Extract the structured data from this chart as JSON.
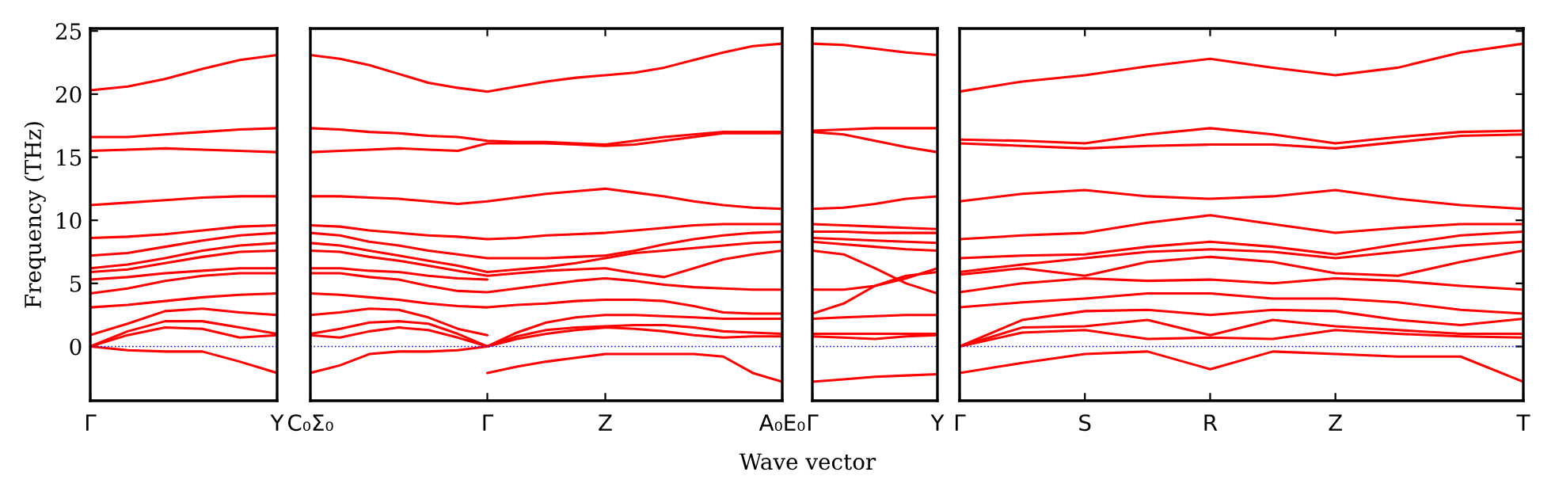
{
  "chart_data": [
    {
      "type": "line",
      "ylabel": "Frequency (THz)",
      "color": "#ff0000",
      "ylim": [
        -4.3,
        25.2
      ],
      "yticks": [
        0,
        5,
        10,
        15,
        20,
        25
      ],
      "grid": false,
      "ref_lines": [
        {
          "axis": "y",
          "value": 0,
          "color": "#0000ff",
          "line_style": "dotted"
        }
      ],
      "categories": [
        "Γ",
        null,
        null,
        null,
        null,
        "Y"
      ],
      "series": [
        {
          "values": [
            20.3,
            20.6,
            21.2,
            22.0,
            22.7,
            23.1
          ]
        },
        {
          "values": [
            16.6,
            16.6,
            16.8,
            17.0,
            17.2,
            17.3
          ]
        },
        {
          "values": [
            15.5,
            15.6,
            15.7,
            15.6,
            15.5,
            15.4
          ]
        },
        {
          "values": [
            11.2,
            11.4,
            11.6,
            11.8,
            11.9,
            11.9
          ]
        },
        {
          "values": [
            8.6,
            8.7,
            8.9,
            9.2,
            9.5,
            9.6
          ]
        },
        {
          "values": [
            7.2,
            7.4,
            7.9,
            8.4,
            8.8,
            9.0
          ]
        },
        {
          "values": [
            6.2,
            6.5,
            7.0,
            7.6,
            8.0,
            8.2
          ]
        },
        {
          "values": [
            5.9,
            6.1,
            6.6,
            7.1,
            7.5,
            7.6
          ]
        },
        {
          "values": [
            5.3,
            5.5,
            5.8,
            6.0,
            6.2,
            6.2
          ]
        },
        {
          "values": [
            4.2,
            4.6,
            5.2,
            5.6,
            5.8,
            5.8
          ]
        },
        {
          "values": [
            3.1,
            3.3,
            3.6,
            3.9,
            4.1,
            4.2
          ]
        },
        {
          "values": [
            0.9,
            1.8,
            2.8,
            3.0,
            2.7,
            2.5
          ]
        },
        {
          "values": [
            0,
            1.2,
            2.0,
            2.0,
            1.5,
            1.0
          ]
        },
        {
          "values": [
            0,
            0.9,
            1.5,
            1.4,
            0.7,
            0.9
          ]
        },
        {
          "values": [
            0,
            -0.3,
            -0.4,
            -0.4,
            -1.2,
            -2.1
          ]
        }
      ]
    },
    {
      "type": "line",
      "color": "#ff0000",
      "ylim": [
        -4.3,
        25.2
      ],
      "yticks": [
        0,
        5,
        10,
        15,
        20,
        25
      ],
      "tick_labels": "x",
      "grid": false,
      "ref_lines": [
        {
          "axis": "y",
          "value": 0,
          "color": "#0000ff",
          "line_style": "dotted"
        }
      ],
      "categories": [
        "C₀Σ₀",
        null,
        null,
        null,
        null,
        null,
        "Γ",
        null,
        null,
        null,
        "Z",
        null,
        null,
        null,
        null,
        null,
        "A₀E₀"
      ],
      "series": [
        {
          "values": [
            23.1,
            22.8,
            22.3,
            21.6,
            20.9,
            20.5,
            20.2,
            20.6,
            21.0,
            21.3,
            21.5,
            21.7,
            22.1,
            22.7,
            23.3,
            23.8,
            24.0
          ]
        },
        {
          "values": [
            17.3,
            17.2,
            17.0,
            16.9,
            16.7,
            16.6,
            16.3,
            16.2,
            16.2,
            16.1,
            16.0,
            16.3,
            16.6,
            16.8,
            17.0,
            17.0,
            17.0
          ]
        },
        {
          "values": [
            15.4,
            15.5,
            15.6,
            15.7,
            15.6,
            15.5,
            16.1,
            16.1,
            16.1,
            16.0,
            15.9,
            16.0,
            16.3,
            16.6,
            16.9,
            16.9,
            16.9
          ]
        },
        {
          "values": [
            11.9,
            11.9,
            11.8,
            11.7,
            11.5,
            11.3,
            11.5,
            11.8,
            12.1,
            12.3,
            12.5,
            12.2,
            11.9,
            11.5,
            11.2,
            11.0,
            10.9
          ]
        },
        {
          "values": [
            9.6,
            9.5,
            9.2,
            9.0,
            8.8,
            8.7,
            8.5,
            8.6,
            8.8,
            8.9,
            9.0,
            9.2,
            9.4,
            9.6,
            9.7,
            9.7,
            9.7
          ]
        },
        {
          "values": [
            9.0,
            8.8,
            8.3,
            8.0,
            7.6,
            7.3,
            7.0,
            7.0,
            7.0,
            7.1,
            7.2,
            7.6,
            8.1,
            8.5,
            8.8,
            9.0,
            9.1
          ]
        },
        {
          "values": [
            8.2,
            8.0,
            7.6,
            7.2,
            6.8,
            6.4,
            5.9,
            6.1,
            6.3,
            6.6,
            7.0,
            7.4,
            7.6,
            7.8,
            8.0,
            8.2,
            8.3
          ]
        },
        {
          "values": [
            7.6,
            7.5,
            7.1,
            6.8,
            6.4,
            6.0,
            5.6,
            5.8,
            6.0,
            6.1,
            6.2,
            5.8,
            5.5,
            6.2,
            6.9,
            7.3,
            7.6
          ]
        },
        {
          "values": [
            6.2,
            6.2,
            6.0,
            5.9,
            5.6,
            5.4,
            5.3,
            null,
            null,
            null,
            null,
            null,
            null,
            null,
            null,
            null,
            null
          ]
        },
        {
          "values": [
            5.8,
            5.8,
            5.5,
            5.3,
            4.8,
            4.4,
            4.3,
            4.6,
            4.9,
            5.2,
            5.4,
            5.2,
            4.9,
            4.7,
            4.6,
            4.5,
            4.5
          ]
        },
        {
          "values": [
            4.2,
            4.1,
            3.9,
            3.7,
            3.4,
            3.2,
            3.1,
            3.3,
            3.4,
            3.6,
            3.7,
            3.7,
            3.6,
            3.2,
            2.7,
            2.6,
            2.6
          ]
        },
        {
          "values": [
            2.5,
            2.7,
            3.0,
            2.9,
            2.3,
            1.4,
            0.9,
            null,
            null,
            null,
            null,
            null,
            null,
            null,
            null,
            null,
            null
          ]
        },
        {
          "values": [
            1.0,
            1.4,
            1.9,
            2.0,
            1.8,
            1.0,
            0,
            1.1,
            1.9,
            2.3,
            2.5,
            2.5,
            2.4,
            2.3,
            2.2,
            2.2,
            2.2
          ]
        },
        {
          "values": [
            0.9,
            0.7,
            1.2,
            1.5,
            1.3,
            0.7,
            0,
            0.8,
            1.3,
            1.5,
            1.6,
            1.7,
            1.7,
            1.5,
            1.2,
            1.1,
            1.0
          ]
        },
        {
          "values": [
            -2.1,
            -1.5,
            -0.6,
            -0.4,
            -0.4,
            -0.3,
            0,
            0.6,
            1.0,
            1.3,
            1.5,
            1.4,
            1.2,
            0.9,
            0.7,
            0.8,
            0.8
          ]
        },
        {
          "values": [
            null,
            null,
            null,
            null,
            null,
            null,
            -2.1,
            -1.6,
            -1.2,
            -0.9,
            -0.6,
            -0.6,
            -0.6,
            -0.6,
            -0.8,
            -2.1,
            -2.8
          ]
        }
      ]
    },
    {
      "type": "line",
      "xlabel": "Wave vector",
      "color": "#ff0000",
      "ylim": [
        -4.3,
        25.2
      ],
      "yticks": [
        0,
        5,
        10,
        15,
        20,
        25
      ],
      "tick_labels": "x",
      "grid": false,
      "ref_lines": [
        {
          "axis": "y",
          "value": 0,
          "color": "#0000ff",
          "line_style": "dotted"
        }
      ],
      "categories": [
        "Γ",
        null,
        null,
        null,
        "Y"
      ],
      "series": [
        {
          "values": [
            24.0,
            23.9,
            23.6,
            23.3,
            23.1
          ]
        },
        {
          "values": [
            17.1,
            17.2,
            17.3,
            17.3,
            17.3
          ]
        },
        {
          "values": [
            17.0,
            16.8,
            16.3,
            15.8,
            15.4
          ]
        },
        {
          "values": [
            10.9,
            11.0,
            11.3,
            11.7,
            11.9
          ]
        },
        {
          "values": [
            9.7,
            9.6,
            9.5,
            9.4,
            9.3
          ]
        },
        {
          "values": [
            9.1,
            9.1,
            9.0,
            9.0,
            9.0
          ]
        },
        {
          "values": [
            8.6,
            8.5,
            8.4,
            8.3,
            8.2
          ]
        },
        {
          "values": [
            8.3,
            8.1,
            7.9,
            7.7,
            7.6
          ]
        },
        {
          "values": [
            7.6,
            7.3,
            6.2,
            5.0,
            4.2
          ]
        },
        {
          "values": [
            4.5,
            4.5,
            4.8,
            5.4,
            6.2
          ]
        },
        {
          "values": [
            2.6,
            3.4,
            4.8,
            5.6,
            5.9
          ]
        },
        {
          "values": [
            2.2,
            2.3,
            2.4,
            2.5,
            2.5
          ]
        },
        {
          "values": [
            1.0,
            1.0,
            1.0,
            1.0,
            1.0
          ]
        },
        {
          "values": [
            0.8,
            0.7,
            0.6,
            0.8,
            0.9
          ]
        },
        {
          "values": [
            -2.8,
            -2.6,
            -2.4,
            -2.3,
            -2.2
          ]
        }
      ]
    },
    {
      "type": "line",
      "color": "#ff0000",
      "ylim": [
        -4.3,
        25.2
      ],
      "yticks": [
        0,
        5,
        10,
        15,
        20,
        25
      ],
      "tick_labels": "x",
      "grid": false,
      "ref_lines": [
        {
          "axis": "y",
          "value": 0,
          "color": "#0000ff",
          "line_style": "dotted"
        }
      ],
      "categories": [
        "Γ",
        null,
        "S",
        null,
        "R",
        null,
        "Z",
        null,
        null,
        "T"
      ],
      "series": [
        {
          "values": [
            20.2,
            21.0,
            21.5,
            22.2,
            22.8,
            22.1,
            21.5,
            22.1,
            23.3,
            24.0
          ]
        },
        {
          "values": [
            16.4,
            16.3,
            16.1,
            16.8,
            17.3,
            16.8,
            16.1,
            16.6,
            17.0,
            17.1
          ]
        },
        {
          "values": [
            16.1,
            15.9,
            15.7,
            15.9,
            16.0,
            16.0,
            15.7,
            16.2,
            16.7,
            16.8
          ]
        },
        {
          "values": [
            11.5,
            12.1,
            12.4,
            11.9,
            11.7,
            11.9,
            12.4,
            11.7,
            11.2,
            10.9
          ]
        },
        {
          "values": [
            8.5,
            8.8,
            9.0,
            9.8,
            10.4,
            9.7,
            9.0,
            9.4,
            9.7,
            9.7
          ]
        },
        {
          "values": [
            7.0,
            7.2,
            7.3,
            7.9,
            8.3,
            7.9,
            7.3,
            8.1,
            8.8,
            9.1
          ]
        },
        {
          "values": [
            5.9,
            6.5,
            7.0,
            7.5,
            7.7,
            7.5,
            7.0,
            7.5,
            8.0,
            8.3
          ]
        },
        {
          "values": [
            5.7,
            6.2,
            5.6,
            6.7,
            7.1,
            6.7,
            5.8,
            5.6,
            6.7,
            7.6
          ]
        },
        {
          "values": [
            4.3,
            5.0,
            5.4,
            5.2,
            5.3,
            5.0,
            5.4,
            5.2,
            4.8,
            4.5
          ]
        },
        {
          "values": [
            3.1,
            3.5,
            3.8,
            4.2,
            4.2,
            3.8,
            3.8,
            3.5,
            2.9,
            2.6
          ]
        },
        {
          "values": [
            0,
            2.1,
            2.8,
            2.9,
            2.5,
            2.9,
            2.8,
            2.1,
            1.7,
            2.2
          ]
        },
        {
          "values": [
            0,
            1.5,
            1.6,
            2.1,
            0.9,
            2.1,
            1.6,
            1.3,
            1.0,
            1.0
          ]
        },
        {
          "values": [
            0,
            1.1,
            1.3,
            0.6,
            0.7,
            0.6,
            1.3,
            1.0,
            0.8,
            0.7
          ]
        },
        {
          "values": [
            -2.1,
            -1.3,
            -0.6,
            -0.4,
            -1.8,
            -0.4,
            -0.6,
            -0.8,
            -0.8,
            -2.8
          ]
        }
      ]
    }
  ]
}
